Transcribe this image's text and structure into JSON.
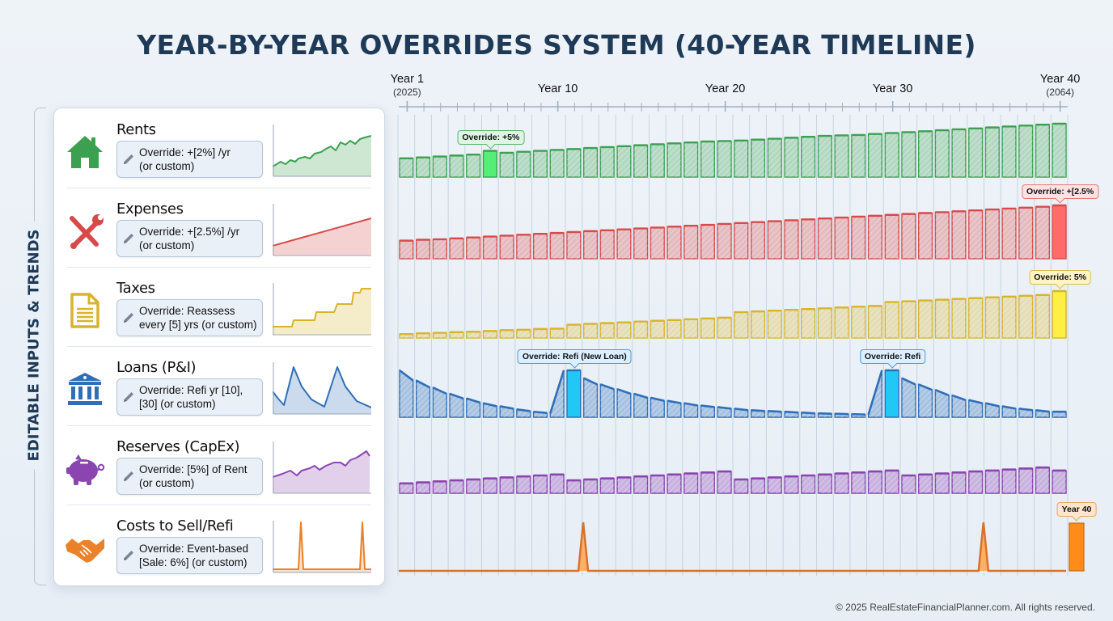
{
  "title": "YEAR-BY-YEAR OVERRIDES SYSTEM (40-YEAR TIMELINE)",
  "side_label": "EDITABLE INPUTS & TRENDS",
  "footer": "© 2025 RealEstateFinancialPlanner.com. All rights reserved.",
  "colors": {
    "rents": "#3ba150",
    "expenses": "#d84a4a",
    "taxes": "#d8b42a",
    "loans": "#2e6fb8",
    "reserves": "#8a45b0",
    "costs": "#e9822a"
  },
  "inputs": [
    {
      "key": "rents",
      "name": "Rents",
      "icon": "house-icon",
      "override_line1": "Override: +[2%] /yr",
      "override_line2": "(or custom)"
    },
    {
      "key": "expenses",
      "name": "Expenses",
      "icon": "wrench-screwdriver-icon",
      "override_line1": "Override: +[2.5%] /yr",
      "override_line2": "(or custom)"
    },
    {
      "key": "taxes",
      "name": "Taxes",
      "icon": "document-icon",
      "override_line1": "Override: Reassess",
      "override_line2": "every [5] yrs (or custom)"
    },
    {
      "key": "loans",
      "name": "Loans (P&I)",
      "icon": "bank-icon",
      "override_line1": "Override: Refi yr [10],",
      "override_line2": "[30] (or custom)"
    },
    {
      "key": "reserves",
      "name": "Reserves (CapEx)",
      "icon": "piggy-bank-icon",
      "override_line1": "Override: [5%] of Rent",
      "override_line2": "(or custom)"
    },
    {
      "key": "costs",
      "name": "Costs to Sell/Refi",
      "icon": "handshake-icon",
      "override_line1": "Override: Event-based",
      "override_line2": "[Sale: 6%] (or custom)"
    }
  ],
  "chart_data": {
    "type": "bar",
    "title": "YEAR-BY-YEAR OVERRIDES SYSTEM (40-YEAR TIMELINE)",
    "x": [
      1,
      2,
      3,
      4,
      5,
      6,
      7,
      8,
      9,
      10,
      11,
      12,
      13,
      14,
      15,
      16,
      17,
      18,
      19,
      20,
      21,
      22,
      23,
      24,
      25,
      26,
      27,
      28,
      29,
      30,
      31,
      32,
      33,
      34,
      35,
      36,
      37,
      38,
      39,
      40
    ],
    "x_tick_labels": [
      {
        "year": 1,
        "label": "Year 1",
        "sub": "(2025)"
      },
      {
        "year": 10,
        "label": "Year 10",
        "sub": ""
      },
      {
        "year": 20,
        "label": "Year 20",
        "sub": ""
      },
      {
        "year": 30,
        "label": "Year 30",
        "sub": ""
      },
      {
        "year": 40,
        "label": "Year 40",
        "sub": "(2064)"
      }
    ],
    "xlabel": "",
    "ylabel": "",
    "grid": true,
    "series": [
      {
        "name": "Rents",
        "key": "rents",
        "values": [
          20,
          21,
          22,
          23,
          24,
          28,
          26,
          27,
          28,
          29,
          30,
          31,
          32,
          33,
          34,
          35,
          36,
          37,
          38,
          38.5,
          39,
          40,
          41,
          42,
          43,
          44,
          44.5,
          45,
          46,
          47,
          48,
          49,
          50,
          51,
          52,
          53,
          54,
          55,
          56,
          57
        ],
        "highlight": [
          6
        ],
        "callouts": [
          {
            "year": 6,
            "text": "Override: +5%"
          }
        ]
      },
      {
        "name": "Expenses",
        "key": "expenses",
        "values": [
          20,
          21,
          21.5,
          22.5,
          23.5,
          24.5,
          25.5,
          26.5,
          27.5,
          28.5,
          29.5,
          30.5,
          31.5,
          32.5,
          33.5,
          34.5,
          35.5,
          36.5,
          37.5,
          38.5,
          39.5,
          40.5,
          41.5,
          42.5,
          43.5,
          44.5,
          45.5,
          46.5,
          47.5,
          48.5,
          49.5,
          50.5,
          51.5,
          52.5,
          53.5,
          54.5,
          55.5,
          56.5,
          57.5,
          59
        ],
        "highlight": [
          40
        ],
        "callouts": [
          {
            "year": 40,
            "text": "Override: +[2.5%"
          }
        ]
      },
      {
        "name": "Taxes",
        "key": "taxes",
        "values": [
          5,
          6,
          6.5,
          7.5,
          8,
          9,
          10,
          10.5,
          11.5,
          12,
          17,
          18,
          19,
          20,
          21,
          22,
          23,
          24,
          25,
          26,
          33,
          34,
          35,
          36,
          37,
          38,
          39,
          40,
          41,
          46,
          47,
          48,
          49,
          50,
          51,
          52,
          53,
          54,
          55,
          60
        ],
        "highlight": [
          40
        ],
        "callouts": [
          {
            "year": 40,
            "text": "Override: 5%"
          }
        ]
      },
      {
        "name": "Loans (P&I)",
        "key": "loans",
        "values": [
          60,
          47,
          38,
          30,
          24,
          18,
          14,
          10,
          7,
          5,
          60,
          50,
          42,
          36,
          30,
          25,
          21,
          18,
          15,
          13,
          11,
          9,
          8,
          7,
          6,
          5,
          4.5,
          4,
          3.5,
          60,
          50,
          42,
          35,
          28,
          22,
          18,
          14,
          11,
          9,
          7
        ],
        "highlight": [
          11,
          30
        ],
        "callouts": [
          {
            "year": 11,
            "text": "Override: Refi (New Loan)"
          },
          {
            "year": 30,
            "text": "Override: Refi"
          }
        ]
      },
      {
        "name": "Reserves (CapEx)",
        "key": "reserves",
        "values": [
          10,
          11,
          12,
          13,
          14,
          15,
          16,
          17,
          18,
          19,
          13,
          14,
          15,
          16,
          17,
          18,
          19,
          20,
          21,
          22,
          14,
          15,
          16,
          17,
          18,
          19,
          20,
          21,
          22,
          23,
          18,
          19,
          20,
          21,
          22,
          23,
          24,
          25,
          26,
          23
        ],
        "highlight": [],
        "callouts": []
      },
      {
        "name": "Costs to Sell/Refi",
        "key": "costs",
        "values": [
          0,
          0,
          0,
          0,
          0,
          0,
          0,
          0,
          0,
          0,
          0,
          60,
          0,
          0,
          0,
          0,
          0,
          0,
          0,
          0,
          0,
          0,
          0,
          0,
          0,
          0,
          0,
          0,
          0,
          0,
          0,
          0,
          0,
          0,
          0,
          60,
          0,
          0,
          0,
          0
        ],
        "event_bar": {
          "year": 40,
          "text": "Year 40"
        },
        "highlight": [],
        "callouts": [
          {
            "year": 40,
            "text": "Year 40"
          }
        ]
      }
    ]
  }
}
